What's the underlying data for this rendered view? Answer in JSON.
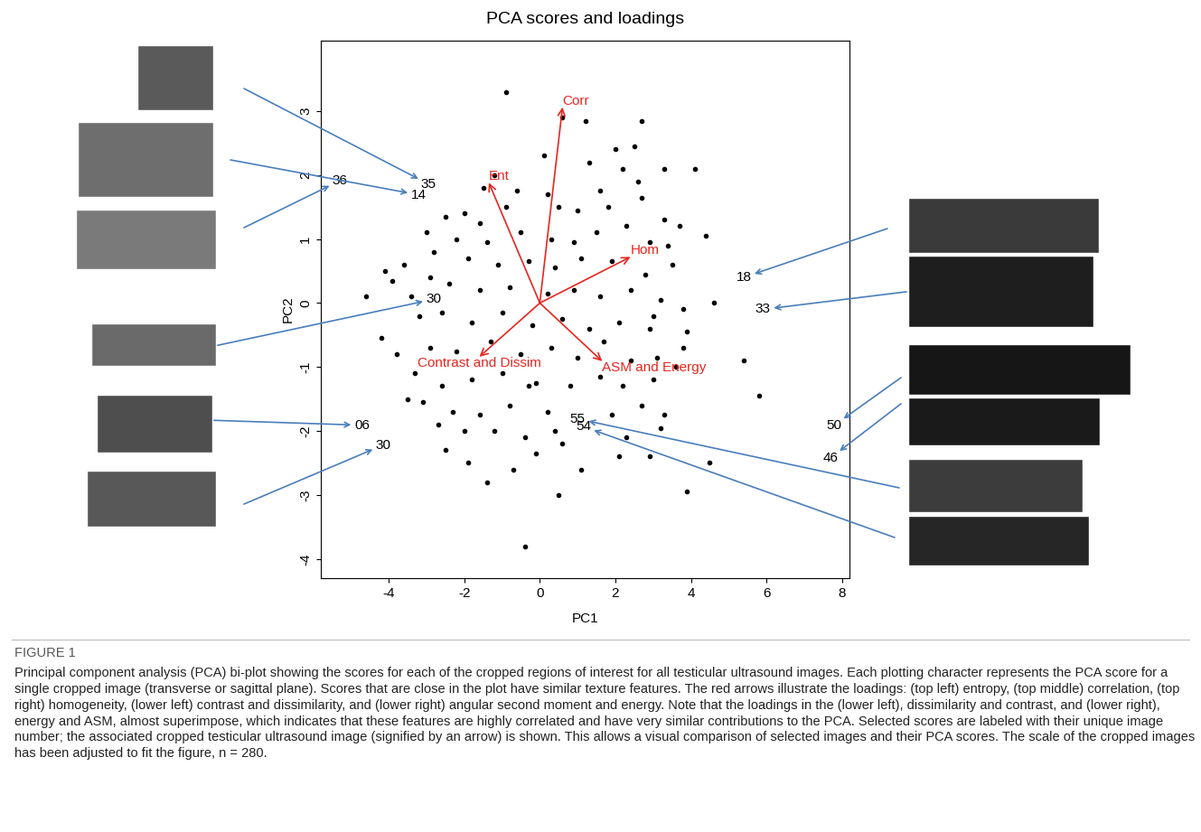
{
  "chart_data": {
    "type": "scatter",
    "title": "PCA scores and loadings",
    "x_label": "PC1",
    "y_label": "PC2",
    "xlim": [
      -5.8,
      8.2
    ],
    "ylim": [
      -4.3,
      4.1
    ],
    "xticks": [
      -4,
      -2,
      0,
      2,
      4,
      6,
      8
    ],
    "yticks": [
      -4,
      -3,
      -2,
      -1,
      0,
      1,
      2,
      3
    ],
    "grid": false,
    "points": {
      "color": "#000000",
      "marker": "o",
      "x": [
        -0.9,
        0.6,
        1.2,
        2.7,
        2.5,
        4.1,
        3.3,
        2.2,
        2.6,
        1.6,
        0.2,
        -0.6,
        -1.2,
        -2.0,
        -2.5,
        -1.6,
        -0.9,
        0.5,
        1.0,
        1.8,
        2.7,
        3.3,
        3.7,
        4.4,
        -3.0,
        -2.8,
        -3.6,
        -4.1,
        -3.9,
        -4.6,
        -2.2,
        -1.4,
        -0.5,
        0.3,
        0.9,
        1.5,
        2.3,
        2.9,
        -1.9,
        -1.1,
        -0.3,
        0.4,
        1.1,
        1.9,
        2.8,
        3.5,
        -2.4,
        -1.6,
        -0.8,
        0.2,
        0.9,
        1.6,
        2.4,
        3.2,
        3.8,
        4.6,
        -3.2,
        -2.6,
        -1.8,
        -1.0,
        -0.2,
        0.6,
        1.3,
        2.1,
        2.9,
        3.9,
        -4.2,
        -3.8,
        -2.9,
        -2.2,
        -1.3,
        -0.5,
        0.3,
        1.0,
        2.4,
        3.1,
        3.8,
        -3.3,
        -2.6,
        -1.8,
        -1.0,
        -0.1,
        0.8,
        1.6,
        2.2,
        3.0,
        3.6,
        5.4,
        5.8,
        -3.1,
        -2.3,
        -1.6,
        -0.8,
        0.2,
        1.9,
        2.7,
        3.3,
        -2.7,
        -2.0,
        -1.2,
        -0.4,
        0.4,
        2.3,
        3.2,
        -2.5,
        -1.9,
        -0.1,
        0.6,
        2.1,
        1.1,
        -1.4,
        4.5,
        3.9,
        -0.4,
        -3.5,
        3.4,
        -1.5,
        1.3,
        2.9,
        -0.7,
        0.5,
        1.7,
        -2.9,
        -3.4,
        3.0,
        0.1,
        -0.3,
        2.0
      ],
      "y": [
        3.3,
        2.9,
        2.85,
        2.85,
        2.45,
        2.1,
        2.1,
        2.1,
        1.9,
        1.75,
        1.7,
        1.75,
        2.0,
        1.4,
        1.35,
        1.25,
        1.5,
        1.5,
        1.45,
        1.5,
        1.65,
        1.3,
        1.2,
        1.05,
        1.1,
        0.8,
        0.6,
        0.5,
        0.35,
        0.1,
        1.0,
        0.95,
        1.1,
        1.0,
        0.95,
        1.1,
        1.2,
        0.95,
        0.7,
        0.6,
        0.65,
        0.55,
        0.7,
        0.65,
        0.45,
        0.6,
        0.3,
        0.2,
        0.25,
        0.15,
        0.2,
        0.1,
        0.2,
        0.05,
        -0.1,
        0.0,
        -0.2,
        -0.15,
        -0.3,
        -0.15,
        -0.35,
        -0.25,
        -0.4,
        -0.3,
        -0.4,
        -0.45,
        -0.55,
        -0.8,
        -0.7,
        -0.75,
        -0.6,
        -0.8,
        -0.7,
        -0.85,
        -0.9,
        -0.85,
        -0.7,
        -1.1,
        -1.3,
        -1.2,
        -1.1,
        -1.25,
        -1.3,
        -1.15,
        -1.3,
        -1.2,
        -1.0,
        -0.9,
        -1.45,
        -1.55,
        -1.7,
        -1.75,
        -1.6,
        -1.7,
        -1.75,
        -1.6,
        -1.75,
        -1.9,
        -2.0,
        -2.0,
        -2.1,
        -2.0,
        -2.1,
        -1.95,
        -2.3,
        -2.5,
        -2.35,
        -2.2,
        -2.4,
        -2.6,
        -2.8,
        -2.5,
        -2.95,
        -3.8,
        -1.5,
        0.9,
        1.8,
        2.2,
        -2.4,
        -2.6,
        -3.0,
        -0.6,
        0.4,
        0.1,
        -0.2,
        2.3,
        -1.3,
        2.4
      ]
    },
    "labeled_points": [
      {
        "label": "35",
        "x": -2.95,
        "y": 1.86
      },
      {
        "label": "14",
        "x": -3.2,
        "y": 1.69
      },
      {
        "label": "36",
        "x": -5.3,
        "y": 1.91
      },
      {
        "label": "30",
        "x": -2.8,
        "y": 0.06
      },
      {
        "label": "06",
        "x": -4.7,
        "y": -1.91
      },
      {
        "label": "30",
        "x": -4.15,
        "y": -2.22
      },
      {
        "label": "18",
        "x": 5.4,
        "y": 0.4
      },
      {
        "label": "33",
        "x": 5.9,
        "y": -0.1
      },
      {
        "label": "50",
        "x": 7.8,
        "y": -1.91
      },
      {
        "label": "46",
        "x": 7.7,
        "y": -2.42
      },
      {
        "label": "55",
        "x": 1.0,
        "y": -1.81
      },
      {
        "label": "54",
        "x": 1.15,
        "y": -1.93
      }
    ],
    "loadings": {
      "color": "#e8251f",
      "arrows": [
        {
          "label": "Corr",
          "x": 0.6,
          "y": 3.06
        },
        {
          "label": "Ent",
          "x": -1.35,
          "y": 1.88
        },
        {
          "label": "Hom",
          "x": 2.4,
          "y": 0.72
        },
        {
          "label": "Contrast and Dissim",
          "x": -1.6,
          "y": -0.84
        },
        {
          "label": "ASM and Energy",
          "x": 1.65,
          "y": -0.91
        }
      ]
    },
    "figure_label": "FIGURE 1",
    "caption": "Principal component analysis (PCA) bi-plot showing the scores for each of the cropped regions of interest for all testicular ultrasound images. Each plotting character represents the PCA score for a single cropped image (transverse or sagittal plane). Scores that are close in the plot have similar texture features. The red arrows illustrate the loadings: (top left) entropy, (top middle) correlation, (top right) homogeneity, (lower left) contrast and dissimilarity, and (lower right) angular second moment and energy. Note that the loadings in the (lower left), dissimilarity and contrast, and (lower right), energy and ASM, almost superimpose, which indicates that these features are highly correlated and have very similar contributions to the PCA. Selected scores are labeled with their unique image number; the associated cropped testicular ultrasound image (signified by an arrow) is shown. This allows a visual comparison of selected images and their PCA scores. The scale of the cropped images has been adjusted to fit the figure, n = 280."
  }
}
